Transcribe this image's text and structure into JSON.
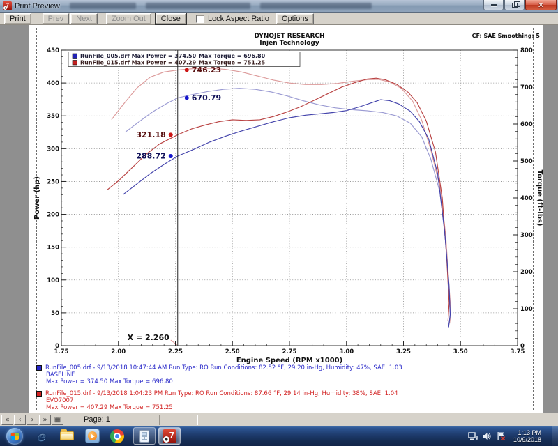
{
  "window": {
    "title": "Print Preview"
  },
  "toolbar": {
    "print": "Print",
    "prev": "Prev",
    "next": "Next",
    "zoom_out": "Zoom Out",
    "close": "Close",
    "lock_aspect": "Lock Aspect Ratio",
    "options": "Options"
  },
  "status_bar": {
    "nav_first": "«",
    "nav_prev": "‹",
    "nav_next": "›",
    "nav_last": "»",
    "nav_grid": "▦",
    "page_label": "Page: 1"
  },
  "taskbar": {
    "clock_time": "1:13 PM",
    "clock_date": "10/9/2018"
  },
  "run_info": [
    {
      "color": "#2626c8",
      "line1": "RunFile_005.drf - 9/13/2018 10:47:44 AM  Run Type: RO  Run Conditions: 82.52 °F, 29.20 in-Hg,  Humidity:  47%, SAE: 1.03",
      "line2": "BASELINE",
      "line3": "Max Power = 374.50  Max Torque = 696.80"
    },
    {
      "color": "#d22222",
      "line1": "RunFile_015.drf - 9/13/2018 1:04:23 PM  Run Type: RO  Run Conditions: 87.66 °F, 29.14 in-Hg,  Humidity:  38%, SAE: 1.04",
      "line2": "EVO7007",
      "line3": "Max Power = 407.29  Max Torque = 751.25"
    }
  ],
  "chart_data": {
    "type": "line",
    "title": "DYNOJET RESEARCH",
    "subtitle": "Injen Technology",
    "corner_note": "CF: SAE  Smoothing: 5",
    "xlabel": "Engine Speed (RPM x1000)",
    "ylabel_left": "Power (hp)",
    "ylabel_right": "Torque (ft-lbs)",
    "xlim": [
      1.75,
      3.75
    ],
    "ylim_left": [
      0,
      450
    ],
    "ylim_right": [
      0,
      800
    ],
    "x_major_step": 0.25,
    "x_minor_step": 0.05,
    "y_left_major_step": 50,
    "y_left_minor_step": 10,
    "y_right_major_step": 100,
    "y_right_minor_step": 20,
    "grid": true,
    "legend": {
      "position": "top-left",
      "entries": [
        {
          "color": "#2121b4",
          "text_color": "#20203a",
          "left": "RunFile_005.drf Max Power = 374.50",
          "right": "Max Torque = 696.80"
        },
        {
          "color": "#c22020",
          "text_color": "#3a2020",
          "left": "RunFile_015.drf Max Power = 407.29",
          "right": "Max Torque = 751.25"
        }
      ]
    },
    "cursor": {
      "x": 2.26,
      "label": "X = 2.260",
      "markers": [
        {
          "series": "torque-evo7007",
          "axis": "right",
          "value": 746.23,
          "label": "746.23",
          "side": "right",
          "color": "#cc1515",
          "label_color": "#581010"
        },
        {
          "series": "torque-baseline",
          "axis": "right",
          "value": 670.79,
          "label": "670.79",
          "side": "right",
          "color": "#1515cc",
          "label_color": "#101058"
        },
        {
          "series": "power-evo7007",
          "axis": "left",
          "value": 321.18,
          "label": "321.18",
          "side": "left",
          "color": "#cc1515",
          "label_color": "#581010"
        },
        {
          "series": "power-baseline",
          "axis": "left",
          "value": 288.72,
          "label": "288.72",
          "side": "left",
          "color": "#1515cc",
          "label_color": "#101058"
        }
      ]
    },
    "series": [
      {
        "name": "torque-evo7007",
        "axis": "right",
        "color": "#dc9a9a",
        "points": [
          [
            1.97,
            612
          ],
          [
            2.02,
            652
          ],
          [
            2.08,
            697
          ],
          [
            2.14,
            727
          ],
          [
            2.2,
            741
          ],
          [
            2.26,
            746.2
          ],
          [
            2.33,
            750
          ],
          [
            2.4,
            751.2
          ],
          [
            2.47,
            748
          ],
          [
            2.54,
            741
          ],
          [
            2.61,
            730
          ],
          [
            2.68,
            719
          ],
          [
            2.75,
            711
          ],
          [
            2.82,
            707
          ],
          [
            2.89,
            707
          ],
          [
            2.96,
            710
          ],
          [
            3.03,
            716
          ],
          [
            3.09,
            720
          ],
          [
            3.14,
            721
          ],
          [
            3.19,
            714
          ],
          [
            3.24,
            697
          ],
          [
            3.29,
            662
          ],
          [
            3.33,
            610
          ],
          [
            3.37,
            530
          ],
          [
            3.41,
            430
          ],
          [
            3.435,
            300
          ],
          [
            3.45,
            160
          ],
          [
            3.458,
            90
          ],
          [
            3.452,
            60
          ]
        ]
      },
      {
        "name": "torque-baseline",
        "axis": "right",
        "color": "#9a9ad2",
        "points": [
          [
            2.03,
            578
          ],
          [
            2.09,
            606
          ],
          [
            2.15,
            633
          ],
          [
            2.21,
            655
          ],
          [
            2.26,
            670.8
          ],
          [
            2.32,
            679
          ],
          [
            2.39,
            688
          ],
          [
            2.46,
            694
          ],
          [
            2.53,
            696.8
          ],
          [
            2.6,
            694
          ],
          [
            2.67,
            687
          ],
          [
            2.74,
            676
          ],
          [
            2.81,
            663
          ],
          [
            2.88,
            652
          ],
          [
            2.95,
            644
          ],
          [
            3.02,
            639
          ],
          [
            3.09,
            636
          ],
          [
            3.16,
            631
          ],
          [
            3.22,
            622
          ],
          [
            3.28,
            602
          ],
          [
            3.33,
            565
          ],
          [
            3.37,
            505
          ],
          [
            3.41,
            415
          ],
          [
            3.435,
            280
          ],
          [
            3.45,
            150
          ],
          [
            3.455,
            80
          ],
          [
            3.448,
            55
          ]
        ]
      },
      {
        "name": "power-evo7007",
        "axis": "left",
        "color": "#b94343",
        "points": [
          [
            1.95,
            237
          ],
          [
            2.0,
            251
          ],
          [
            2.06,
            271
          ],
          [
            2.12,
            291
          ],
          [
            2.18,
            307
          ],
          [
            2.26,
            321.2
          ],
          [
            2.32,
            330
          ],
          [
            2.38,
            336
          ],
          [
            2.44,
            341
          ],
          [
            2.5,
            344
          ],
          [
            2.56,
            343
          ],
          [
            2.62,
            344
          ],
          [
            2.68,
            349
          ],
          [
            2.74,
            356
          ],
          [
            2.8,
            364
          ],
          [
            2.86,
            374
          ],
          [
            2.92,
            384
          ],
          [
            2.98,
            394
          ],
          [
            3.04,
            401
          ],
          [
            3.09,
            406
          ],
          [
            3.13,
            407.3
          ],
          [
            3.17,
            405
          ],
          [
            3.22,
            398
          ],
          [
            3.27,
            386
          ],
          [
            3.31,
            370
          ],
          [
            3.35,
            342
          ],
          [
            3.39,
            295
          ],
          [
            3.42,
            225
          ],
          [
            3.44,
            130
          ],
          [
            3.45,
            65
          ],
          [
            3.445,
            38
          ]
        ]
      },
      {
        "name": "power-baseline",
        "axis": "left",
        "color": "#4343ab",
        "points": [
          [
            2.02,
            230
          ],
          [
            2.08,
            246
          ],
          [
            2.14,
            262
          ],
          [
            2.2,
            276
          ],
          [
            2.26,
            288.7
          ],
          [
            2.33,
            299
          ],
          [
            2.4,
            310
          ],
          [
            2.47,
            319
          ],
          [
            2.54,
            327
          ],
          [
            2.61,
            334
          ],
          [
            2.68,
            341
          ],
          [
            2.75,
            347
          ],
          [
            2.82,
            351
          ],
          [
            2.88,
            353
          ],
          [
            2.94,
            355
          ],
          [
            3.0,
            358
          ],
          [
            3.06,
            364
          ],
          [
            3.11,
            370
          ],
          [
            3.15,
            374.5
          ],
          [
            3.19,
            373
          ],
          [
            3.23,
            368
          ],
          [
            3.28,
            357
          ],
          [
            3.32,
            341
          ],
          [
            3.36,
            315
          ],
          [
            3.4,
            262
          ],
          [
            3.43,
            175
          ],
          [
            3.45,
            90
          ],
          [
            3.455,
            48
          ],
          [
            3.448,
            28
          ]
        ]
      }
    ]
  }
}
